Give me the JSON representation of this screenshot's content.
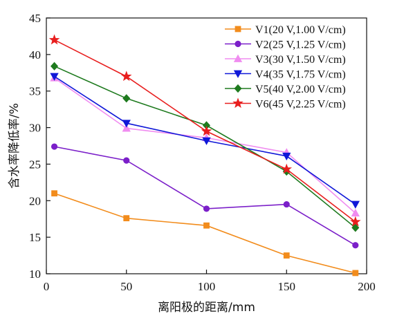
{
  "chart_data": {
    "type": "line",
    "xlabel": "离阳极的距离/mm",
    "ylabel": "含水率降低率/%",
    "xlim": [
      0,
      200
    ],
    "ylim": [
      10,
      45
    ],
    "xticks": [
      0,
      50,
      100,
      150,
      200
    ],
    "yticks": [
      10,
      15,
      20,
      25,
      30,
      35,
      40,
      45
    ],
    "grid": false,
    "legend_position": "top-right",
    "series": [
      {
        "name": "V1(20 V,1.00 V/cm)",
        "color": "#F28C1C",
        "marker": "square",
        "x": [
          5,
          50,
          100,
          150,
          193
        ],
        "y": [
          21.0,
          17.6,
          16.6,
          12.5,
          10.1
        ]
      },
      {
        "name": "V2(25 V,1.25 V/cm)",
        "color": "#7B1FC9",
        "marker": "circle",
        "x": [
          5,
          50,
          100,
          150,
          193
        ],
        "y": [
          27.4,
          25.5,
          18.9,
          19.5,
          13.9
        ]
      },
      {
        "name": "V3(30 V,1.50 V/cm)",
        "color": "#F08CF0",
        "marker": "triangle-up",
        "x": [
          5,
          50,
          100,
          150,
          193
        ],
        "y": [
          36.8,
          29.9,
          28.6,
          26.6,
          18.3
        ]
      },
      {
        "name": "V4(35 V,1.75 V/cm)",
        "color": "#1018D8",
        "marker": "triangle-down",
        "x": [
          5,
          50,
          100,
          150,
          193
        ],
        "y": [
          37.0,
          30.6,
          28.2,
          26.1,
          19.5
        ]
      },
      {
        "name": "V5(40 V,2.00 V/cm)",
        "color": "#1E7A1E",
        "marker": "diamond",
        "x": [
          5,
          50,
          100,
          150,
          193
        ],
        "y": [
          38.4,
          34.0,
          30.3,
          24.0,
          16.3
        ]
      },
      {
        "name": "V6(45 V,2.25 V/cm)",
        "color": "#E81E1E",
        "marker": "star",
        "x": [
          5,
          50,
          100,
          150,
          193
        ],
        "y": [
          42.0,
          37.0,
          29.5,
          24.3,
          17.1
        ]
      }
    ]
  }
}
